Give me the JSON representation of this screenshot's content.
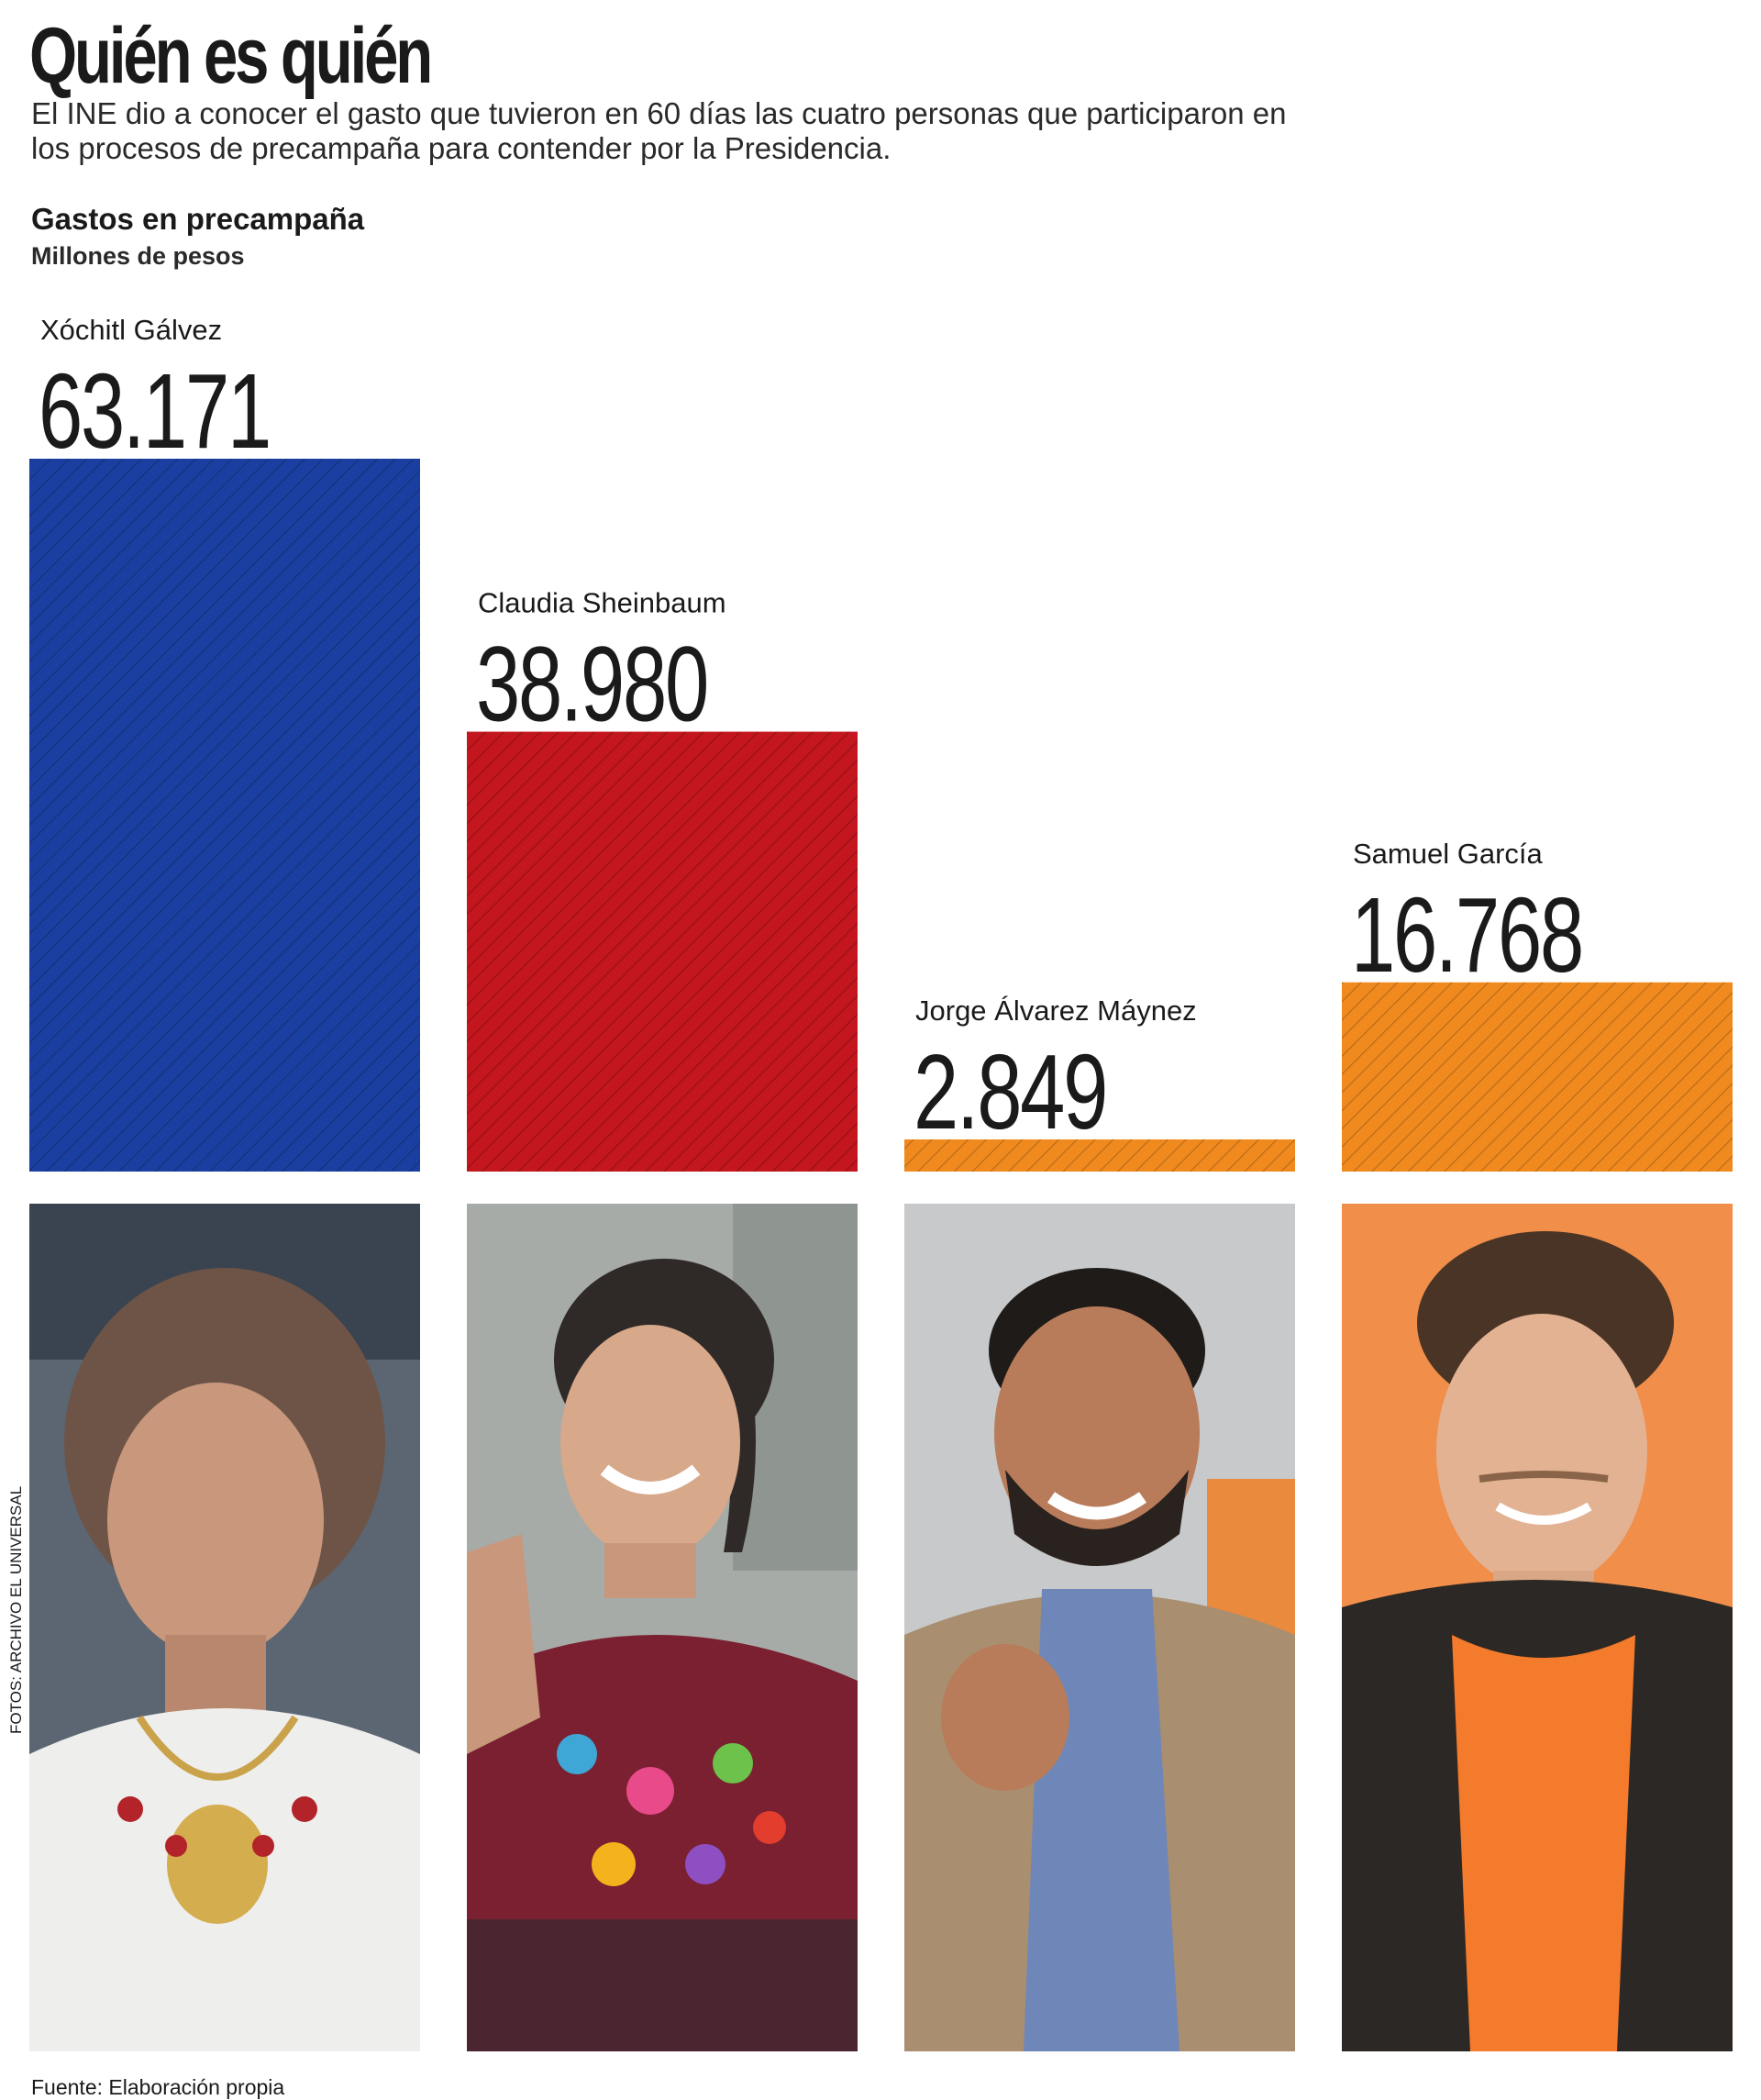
{
  "header": {
    "title": "Quién es quién",
    "subtitle": "El INE dio a conocer el gasto que tuvieron en 60 días las cuatro personas que participaron en los procesos de precampaña para contender por la Presidencia."
  },
  "photo_credit": "FOTOS: ARCHIVO EL UNIVERSAL",
  "source": "Fuente: Elaboración propia",
  "colors": {
    "Xóchitl Gálvez": "#1b3fa0",
    "Claudia Sheinbaum": "#c3161e",
    "Jorge Álvarez Máynez": "#f18a1e",
    "Samuel García": "#f18a1e",
    "text": "#1a1a1a"
  },
  "chart_data": {
    "type": "bar",
    "title": "Gastos en precampaña",
    "ylabel": "Millones de pesos",
    "categories": [
      "Xóchitl Gálvez",
      "Claudia Sheinbaum",
      "Jorge Álvarez Máynez",
      "Samuel García"
    ],
    "values": [
      63.171,
      38.98,
      2.849,
      16.768
    ],
    "value_labels": [
      "63.171",
      "38.980",
      "2.849",
      "16.768"
    ],
    "ylim": [
      0,
      63.171
    ],
    "grid": false,
    "legend": "none"
  }
}
